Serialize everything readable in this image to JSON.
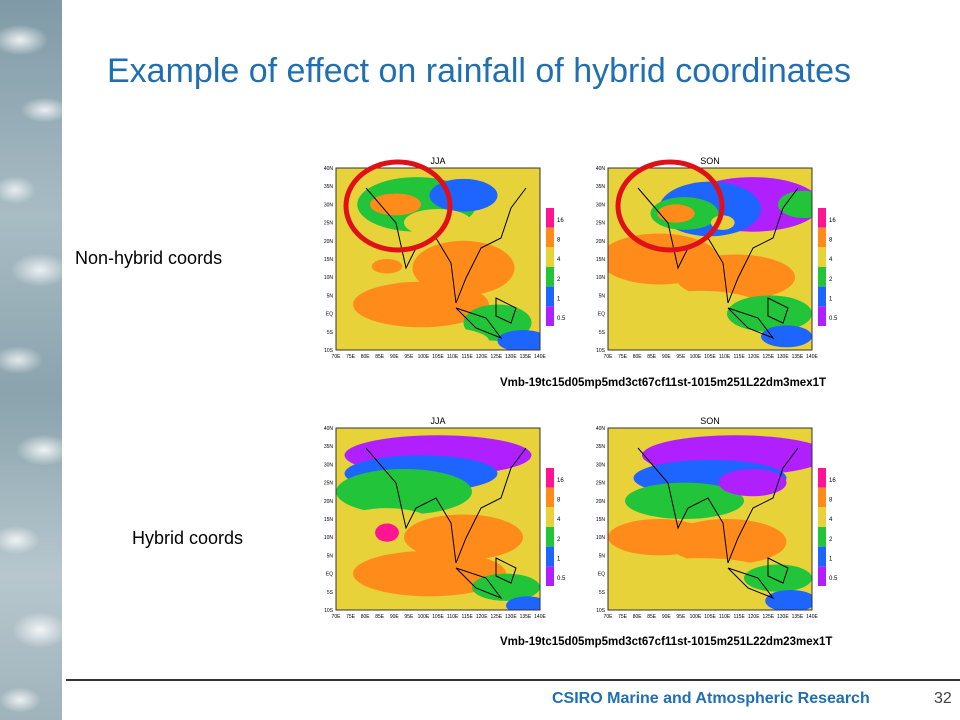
{
  "slide": {
    "title": "Example of effect on rainfall of hybrid coordinates",
    "footer_org": "CSIRO Marine and Atmospheric Research",
    "page_number": "32"
  },
  "rows": [
    {
      "label": "Non-hybrid coords",
      "caption": "Vmb-19tc15d05mp5md3ct67cf11st-1015m251L22dm3mex1T",
      "panels": [
        {
          "season": "JJA",
          "highlighted": true
        },
        {
          "season": "SON",
          "highlighted": true
        }
      ]
    },
    {
      "label": "Hybrid coords",
      "caption": "Vmb-19tc15d05mp5md3ct67cf11st-1015m251L22dm23mex1T",
      "panels": [
        {
          "season": "JJA",
          "highlighted": false
        },
        {
          "season": "SON",
          "highlighted": false
        }
      ]
    }
  ],
  "lat_labels": [
    "40N",
    "35N",
    "30N",
    "25N",
    "20N",
    "15N",
    "10N",
    "5N",
    "EQ",
    "5S",
    "10S"
  ],
  "lon_labels": [
    "70E",
    "75E",
    "80E",
    "85E",
    "90E",
    "95E",
    "100E",
    "105E",
    "110E",
    "115E",
    "120E",
    "125E",
    "130E",
    "135E",
    "140E"
  ],
  "colorbar": {
    "levels": [
      "16",
      "8",
      "4",
      "2",
      "1",
      "0.5"
    ],
    "colors": [
      "#ff1493",
      "#ff8c1a",
      "#e8d23a",
      "#22c43a",
      "#1e64ff",
      "#b020ff"
    ]
  },
  "colors": {
    "title": "#1f6fb2",
    "highlight_ring": "#e0101a",
    "dry": "#b020ff",
    "low": "#1e64ff",
    "mid_low": "#22c43a",
    "mid": "#e8d23a",
    "high": "#ff8c1a",
    "very_high": "#ff1493"
  }
}
